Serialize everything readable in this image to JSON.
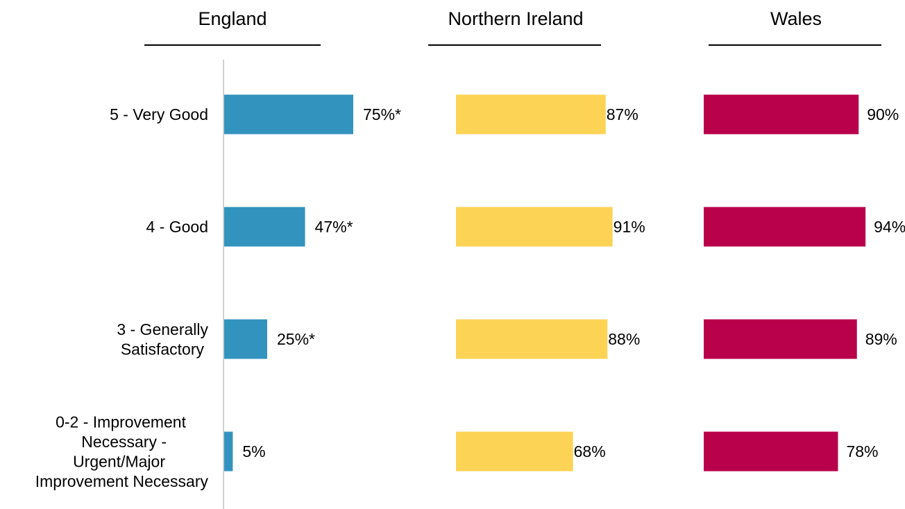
{
  "chart_data": {
    "type": "bar",
    "orientation": "horizontal",
    "categories": [
      "5 - Very Good",
      "4 - Good",
      "3 - Generally Satisfactory",
      "0-2 - Improvement Necessary - Urgent/Major Improvement Necessary"
    ],
    "category_lines": [
      [
        "5 - Very Good"
      ],
      [
        "4 - Good"
      ],
      [
        "3 - Generally",
        "Satisfactory"
      ],
      [
        "0-2 - Improvement",
        "Necessary -",
        "Urgent/Major",
        "Improvement Necessary"
      ]
    ],
    "series": [
      {
        "name": "England",
        "color": "#3393BF",
        "values": [
          75,
          47,
          25,
          5
        ],
        "labels": [
          "75%*",
          "47%*",
          "25%*",
          "5%"
        ]
      },
      {
        "name": "Northern Ireland",
        "color": "#FDD356",
        "values": [
          87,
          91,
          88,
          68
        ],
        "labels": [
          "87%",
          "91%",
          "88%",
          "68%"
        ]
      },
      {
        "name": "Wales",
        "color": "#B8004B",
        "values": [
          90,
          94,
          89,
          78
        ],
        "labels": [
          "90%",
          "94%",
          "89%",
          "78%"
        ]
      }
    ],
    "xlim": [
      0,
      100
    ],
    "unit": "%",
    "grid": false,
    "legend": "panel titles"
  }
}
